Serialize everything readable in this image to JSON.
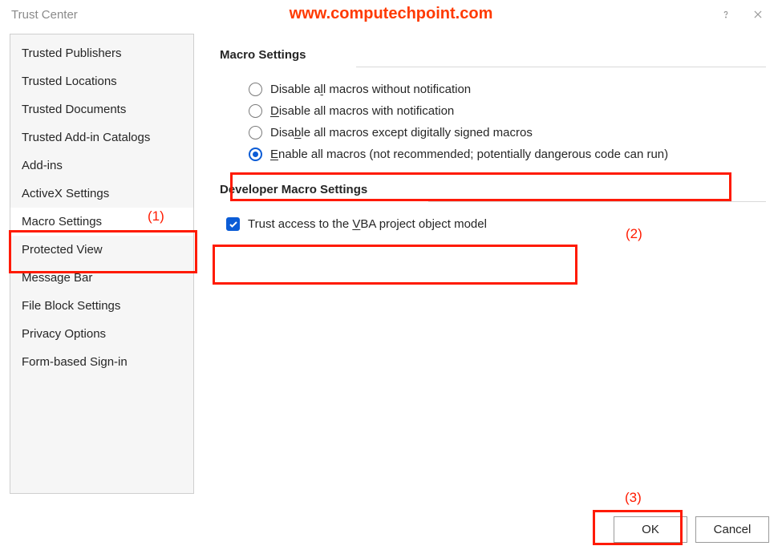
{
  "window": {
    "title": "Trust Center"
  },
  "watermark": "www.computechpoint.com",
  "colors": {
    "highlight": "#ff1a00",
    "watermark": "#ff3a00",
    "accent": "#0b5cd6",
    "border": "#cfcfcf",
    "hr": "#d9d9d9",
    "sidebar_bg": "#f6f6f6"
  },
  "sidebar": {
    "selected_index": 6,
    "items": [
      "Trusted Publishers",
      "Trusted Locations",
      "Trusted Documents",
      "Trusted Add-in Catalogs",
      "Add-ins",
      "ActiveX Settings",
      "Macro Settings",
      "Protected View",
      "Message Bar",
      "File Block Settings",
      "Privacy Options",
      "Form-based Sign-in"
    ]
  },
  "macro": {
    "title": "Macro Settings",
    "selected_index": 3,
    "options": [
      {
        "pre": "Disable a",
        "u": "l",
        "post": "l macros without notification"
      },
      {
        "pre": "",
        "u": "D",
        "post": "isable all macros with notification"
      },
      {
        "pre": "Disa",
        "u": "b",
        "post": "le all macros except digitally signed macros"
      },
      {
        "pre": "",
        "u": "E",
        "post": "nable all macros (not recommended; potentially dangerous code can run)"
      }
    ]
  },
  "dev": {
    "title": "Developer Macro Settings",
    "trust_checked": true,
    "trust": {
      "pre": "Trust access to the ",
      "u": "V",
      "post": "BA project object model"
    }
  },
  "buttons": {
    "ok": "OK",
    "cancel": "Cancel"
  },
  "annotations": {
    "a1_label": "(1)",
    "a2_label": "(2)",
    "a3_label": "(3)"
  }
}
